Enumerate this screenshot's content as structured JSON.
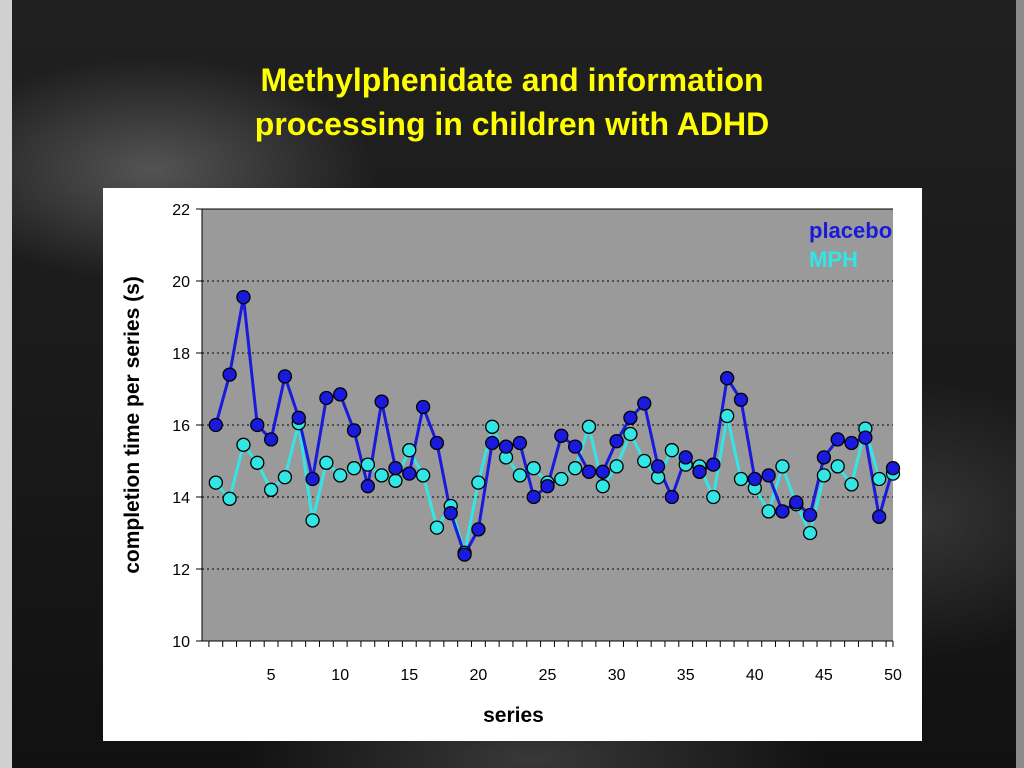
{
  "slide": {
    "title_line1": "Methylphenidate and information",
    "title_line2": "processing in children with ADHD"
  },
  "chart_data": {
    "type": "line",
    "xlabel": "series",
    "ylabel": "completion time per series (s)",
    "xlim": [
      0,
      50
    ],
    "ylim": [
      10,
      22
    ],
    "x_ticks": [
      5,
      10,
      15,
      20,
      25,
      30,
      35,
      40,
      45,
      50
    ],
    "y_ticks": [
      10,
      12,
      14,
      16,
      18,
      20,
      22
    ],
    "grid": "horizontal dotted",
    "legend_position": "top-right",
    "x": [
      1,
      2,
      3,
      4,
      5,
      6,
      7,
      8,
      9,
      10,
      11,
      12,
      13,
      14,
      15,
      16,
      17,
      18,
      19,
      20,
      21,
      22,
      23,
      24,
      25,
      26,
      27,
      28,
      29,
      30,
      31,
      32,
      33,
      34,
      35,
      36,
      37,
      38,
      39,
      40,
      41,
      42,
      43,
      44,
      45,
      46,
      47,
      48,
      49,
      50
    ],
    "series": [
      {
        "name": "placebo",
        "color": "#1a1adc",
        "values": [
          16.0,
          17.4,
          19.55,
          16.0,
          15.6,
          17.35,
          16.2,
          14.5,
          16.75,
          16.85,
          15.85,
          14.3,
          16.65,
          14.8,
          14.65,
          16.5,
          15.5,
          13.55,
          12.4,
          13.1,
          15.5,
          15.4,
          15.5,
          14.0,
          14.3,
          15.7,
          15.4,
          14.7,
          14.7,
          15.55,
          16.2,
          16.6,
          14.85,
          14.0,
          15.1,
          14.7,
          14.9,
          17.3,
          16.7,
          14.5,
          14.6,
          13.6,
          13.85,
          13.5,
          15.1,
          15.6,
          15.5,
          15.65,
          13.45,
          14.8
        ]
      },
      {
        "name": "MPH",
        "color": "#33e6e6",
        "values": [
          14.4,
          13.95,
          15.45,
          14.95,
          14.2,
          14.55,
          16.05,
          13.35,
          14.95,
          14.6,
          14.8,
          14.9,
          14.6,
          14.45,
          15.3,
          14.6,
          13.15,
          13.75,
          12.45,
          14.4,
          15.95,
          15.1,
          14.6,
          14.8,
          14.4,
          14.5,
          14.8,
          15.95,
          14.3,
          14.85,
          15.75,
          15.0,
          14.55,
          15.3,
          14.9,
          14.85,
          14.0,
          16.25,
          14.5,
          14.25,
          13.6,
          14.85,
          13.8,
          13.0,
          14.6,
          14.85,
          14.35,
          15.9,
          14.5,
          14.65
        ]
      }
    ]
  }
}
